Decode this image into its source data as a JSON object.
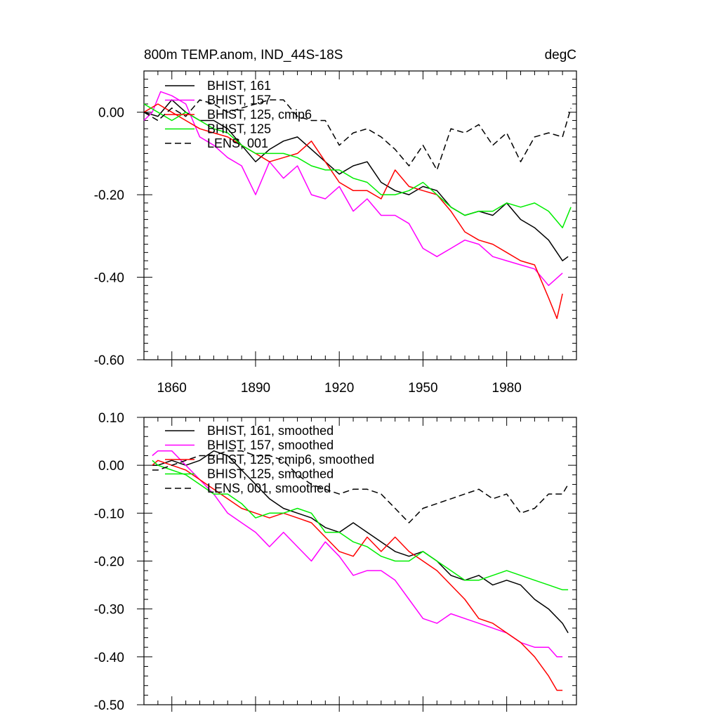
{
  "chart_data": [
    {
      "type": "line",
      "title": "800m TEMP.anom, IND_44S-18S",
      "units": "degC",
      "xlim": [
        1850,
        2005
      ],
      "ylim": [
        -0.6,
        0.1
      ],
      "xticks": [
        1860,
        1890,
        1920,
        1950,
        1980
      ],
      "xtick_labels": [
        "1860",
        "1890",
        "1920",
        "1950",
        "1980"
      ],
      "yticks": [
        0.0,
        -0.2,
        -0.4,
        -0.6
      ],
      "ytick_labels": [
        "0.00",
        "-0.20",
        "-0.40",
        "-0.60"
      ],
      "legend_position": "top-left",
      "series": [
        {
          "name": "BHIST, 161",
          "color": "#000000",
          "dashed": false,
          "x": [
            1850,
            1855,
            1860,
            1865,
            1870,
            1875,
            1880,
            1885,
            1890,
            1895,
            1900,
            1905,
            1910,
            1915,
            1920,
            1925,
            1930,
            1935,
            1940,
            1945,
            1950,
            1955,
            1960,
            1965,
            1970,
            1975,
            1980,
            1985,
            1990,
            1995,
            2000,
            2002
          ],
          "values": [
            0.0,
            -0.01,
            0.03,
            0.0,
            -0.02,
            -0.02,
            -0.04,
            -0.08,
            -0.12,
            -0.09,
            -0.07,
            -0.06,
            -0.09,
            -0.12,
            -0.15,
            -0.13,
            -0.12,
            -0.17,
            -0.19,
            -0.2,
            -0.18,
            -0.19,
            -0.23,
            -0.25,
            -0.24,
            -0.25,
            -0.22,
            -0.26,
            -0.28,
            -0.31,
            -0.36,
            -0.35
          ]
        },
        {
          "name": "BHIST, 157",
          "color": "#ff00ff",
          "dashed": false,
          "x": [
            1850,
            1853,
            1856,
            1860,
            1865,
            1870,
            1875,
            1880,
            1885,
            1890,
            1895,
            1900,
            1905,
            1910,
            1915,
            1920,
            1925,
            1930,
            1935,
            1940,
            1945,
            1950,
            1955,
            1960,
            1965,
            1970,
            1975,
            1980,
            1985,
            1990,
            1995,
            2000
          ],
          "values": [
            -0.02,
            0.0,
            0.05,
            0.04,
            0.02,
            -0.06,
            -0.08,
            -0.11,
            -0.13,
            -0.2,
            -0.12,
            -0.16,
            -0.13,
            -0.2,
            -0.21,
            -0.18,
            -0.24,
            -0.21,
            -0.25,
            -0.25,
            -0.27,
            -0.33,
            -0.35,
            -0.33,
            -0.31,
            -0.32,
            -0.35,
            -0.36,
            -0.37,
            -0.38,
            -0.42,
            -0.39
          ]
        },
        {
          "name": "BHIST, 125, cmip6",
          "color": "#ff0000",
          "dashed": false,
          "x": [
            1850,
            1855,
            1860,
            1865,
            1870,
            1875,
            1880,
            1885,
            1890,
            1895,
            1900,
            1905,
            1910,
            1915,
            1920,
            1925,
            1930,
            1935,
            1940,
            1945,
            1950,
            1955,
            1960,
            1965,
            1970,
            1975,
            1980,
            1985,
            1990,
            1995,
            1998,
            2000
          ],
          "values": [
            0.0,
            0.02,
            0.0,
            -0.02,
            -0.04,
            -0.05,
            -0.06,
            -0.08,
            -0.1,
            -0.12,
            -0.11,
            -0.1,
            -0.07,
            -0.12,
            -0.17,
            -0.19,
            -0.19,
            -0.21,
            -0.14,
            -0.18,
            -0.19,
            -0.2,
            -0.24,
            -0.29,
            -0.31,
            -0.32,
            -0.34,
            -0.36,
            -0.37,
            -0.45,
            -0.5,
            -0.44
          ]
        },
        {
          "name": "BHIST, 125",
          "color": "#00ee00",
          "dashed": false,
          "x": [
            1850,
            1855,
            1860,
            1865,
            1870,
            1875,
            1880,
            1885,
            1890,
            1895,
            1900,
            1905,
            1910,
            1915,
            1920,
            1925,
            1930,
            1935,
            1940,
            1945,
            1950,
            1955,
            1960,
            1965,
            1970,
            1975,
            1980,
            1985,
            1990,
            1995,
            2000,
            2003
          ],
          "values": [
            0.02,
            0.0,
            -0.02,
            0.0,
            -0.02,
            -0.04,
            -0.05,
            -0.08,
            -0.1,
            -0.1,
            -0.1,
            -0.11,
            -0.13,
            -0.14,
            -0.14,
            -0.16,
            -0.17,
            -0.2,
            -0.2,
            -0.19,
            -0.17,
            -0.2,
            -0.23,
            -0.25,
            -0.24,
            -0.24,
            -0.22,
            -0.23,
            -0.22,
            -0.24,
            -0.28,
            -0.23
          ]
        },
        {
          "name": "LENS, 001",
          "color": "#000000",
          "dashed": true,
          "x": [
            1850,
            1855,
            1860,
            1865,
            1870,
            1875,
            1880,
            1885,
            1890,
            1895,
            1900,
            1905,
            1910,
            1915,
            1920,
            1925,
            1930,
            1935,
            1940,
            1945,
            1950,
            1955,
            1960,
            1965,
            1970,
            1975,
            1980,
            1985,
            1990,
            1995,
            2000,
            2003
          ],
          "values": [
            0.0,
            -0.02,
            0.01,
            -0.01,
            0.03,
            0.02,
            0.0,
            0.01,
            0.02,
            0.03,
            0.03,
            -0.01,
            -0.02,
            -0.02,
            -0.08,
            -0.05,
            -0.04,
            -0.06,
            -0.09,
            -0.13,
            -0.08,
            -0.14,
            -0.04,
            -0.05,
            -0.03,
            -0.08,
            -0.05,
            -0.12,
            -0.06,
            -0.05,
            -0.06,
            0.01
          ]
        }
      ]
    },
    {
      "type": "line",
      "title": "",
      "xlim": [
        1850,
        2005
      ],
      "ylim": [
        -0.5,
        0.1
      ],
      "xticks": [
        1860,
        1890,
        1920,
        1950,
        1980
      ],
      "yticks": [
        0.1,
        0.0,
        -0.1,
        -0.2,
        -0.3,
        -0.4,
        -0.5
      ],
      "ytick_labels": [
        "0.10",
        "0.00",
        "-0.10",
        "-0.20",
        "-0.30",
        "-0.40",
        "-0.50"
      ],
      "legend_position": "top-left",
      "series": [
        {
          "name": "BHIST, 161, smoothed",
          "color": "#000000",
          "dashed": false,
          "x": [
            1853,
            1855,
            1860,
            1865,
            1870,
            1875,
            1880,
            1885,
            1890,
            1895,
            1900,
            1905,
            1910,
            1915,
            1920,
            1925,
            1930,
            1935,
            1940,
            1945,
            1950,
            1955,
            1960,
            1965,
            1970,
            1975,
            1980,
            1985,
            1990,
            1995,
            2000,
            2002
          ],
          "values": [
            0.0,
            0.0,
            0.01,
            0.0,
            0.01,
            0.03,
            0.02,
            -0.01,
            -0.04,
            -0.07,
            -0.09,
            -0.1,
            -0.11,
            -0.13,
            -0.14,
            -0.12,
            -0.14,
            -0.16,
            -0.18,
            -0.19,
            -0.18,
            -0.2,
            -0.23,
            -0.24,
            -0.23,
            -0.25,
            -0.24,
            -0.25,
            -0.28,
            -0.3,
            -0.33,
            -0.35
          ]
        },
        {
          "name": "BHIST, 157, smoothed",
          "color": "#ff00ff",
          "dashed": false,
          "x": [
            1853,
            1855,
            1860,
            1865,
            1870,
            1875,
            1880,
            1885,
            1890,
            1895,
            1900,
            1905,
            1910,
            1915,
            1920,
            1925,
            1930,
            1935,
            1940,
            1945,
            1950,
            1955,
            1960,
            1965,
            1970,
            1975,
            1980,
            1985,
            1990,
            1995,
            1998,
            2000
          ],
          "values": [
            0.02,
            0.03,
            0.03,
            0.0,
            -0.03,
            -0.06,
            -0.1,
            -0.12,
            -0.14,
            -0.17,
            -0.14,
            -0.17,
            -0.2,
            -0.16,
            -0.19,
            -0.23,
            -0.22,
            -0.22,
            -0.24,
            -0.28,
            -0.32,
            -0.33,
            -0.31,
            -0.32,
            -0.33,
            -0.34,
            -0.35,
            -0.37,
            -0.38,
            -0.38,
            -0.4,
            -0.4
          ]
        },
        {
          "name": "BHIST, 125, cmip6, smoothed",
          "color": "#ff0000",
          "dashed": false,
          "x": [
            1853,
            1855,
            1860,
            1865,
            1870,
            1875,
            1880,
            1885,
            1890,
            1895,
            1900,
            1905,
            1910,
            1915,
            1920,
            1925,
            1930,
            1935,
            1940,
            1945,
            1950,
            1955,
            1960,
            1965,
            1970,
            1975,
            1980,
            1985,
            1990,
            1995,
            1998,
            2000
          ],
          "values": [
            0.0,
            0.01,
            0.0,
            -0.01,
            -0.03,
            -0.05,
            -0.07,
            -0.09,
            -0.1,
            -0.11,
            -0.1,
            -0.11,
            -0.12,
            -0.15,
            -0.18,
            -0.19,
            -0.15,
            -0.18,
            -0.15,
            -0.18,
            -0.2,
            -0.22,
            -0.25,
            -0.28,
            -0.32,
            -0.33,
            -0.35,
            -0.37,
            -0.4,
            -0.44,
            -0.47,
            -0.47
          ]
        },
        {
          "name": "BHIST, 125, smoothed",
          "color": "#00ee00",
          "dashed": false,
          "x": [
            1853,
            1855,
            1860,
            1865,
            1870,
            1875,
            1880,
            1885,
            1890,
            1895,
            1900,
            1905,
            1910,
            1915,
            1920,
            1925,
            1930,
            1935,
            1940,
            1945,
            1950,
            1955,
            1960,
            1965,
            1970,
            1975,
            1980,
            1985,
            1990,
            1995,
            2000,
            2002
          ],
          "values": [
            0.01,
            0.0,
            -0.01,
            -0.02,
            -0.04,
            -0.06,
            -0.06,
            -0.08,
            -0.11,
            -0.1,
            -0.1,
            -0.09,
            -0.1,
            -0.14,
            -0.14,
            -0.16,
            -0.17,
            -0.19,
            -0.2,
            -0.2,
            -0.18,
            -0.2,
            -0.22,
            -0.24,
            -0.24,
            -0.23,
            -0.22,
            -0.23,
            -0.24,
            -0.25,
            -0.26,
            -0.26
          ]
        },
        {
          "name": "LENS, 001, smoothed",
          "color": "#000000",
          "dashed": true,
          "x": [
            1853,
            1855,
            1860,
            1865,
            1870,
            1875,
            1880,
            1885,
            1890,
            1895,
            1900,
            1905,
            1910,
            1915,
            1920,
            1925,
            1930,
            1935,
            1940,
            1945,
            1950,
            1955,
            1960,
            1965,
            1970,
            1975,
            1980,
            1985,
            1990,
            1995,
            2000,
            2002
          ],
          "values": [
            -0.01,
            -0.01,
            0.0,
            0.01,
            0.02,
            0.02,
            0.03,
            0.03,
            0.02,
            0.02,
            0.01,
            -0.02,
            -0.04,
            -0.05,
            -0.06,
            -0.05,
            -0.05,
            -0.06,
            -0.09,
            -0.12,
            -0.09,
            -0.08,
            -0.07,
            -0.06,
            -0.05,
            -0.07,
            -0.06,
            -0.1,
            -0.09,
            -0.06,
            -0.06,
            -0.04
          ]
        }
      ]
    }
  ]
}
